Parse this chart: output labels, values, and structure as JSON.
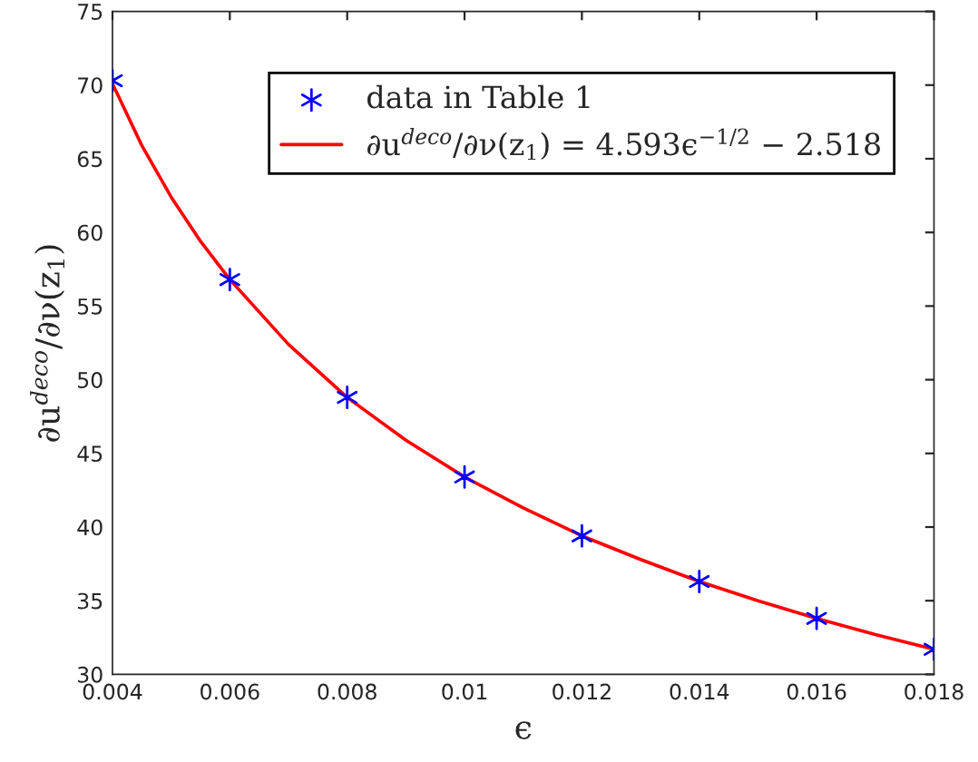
{
  "chart_data": {
    "type": "scatter",
    "xlabel": "ϵ",
    "ylabel": "∂u$^{deco}$/∂ν(z$_{1}$)",
    "xlim": [
      0.004,
      0.018
    ],
    "xticks": [
      0.004,
      0.006,
      0.008,
      0.01,
      0.012,
      0.014,
      0.016,
      0.018
    ],
    "ylim": [
      30,
      75
    ],
    "yticks": [
      30,
      35,
      40,
      45,
      50,
      55,
      60,
      65,
      70,
      75
    ],
    "grid": false,
    "legend": "top right",
    "series": [
      {
        "name": "data in Table 1",
        "marker": "cross",
        "color": "#0000ff",
        "x": [
          0.004,
          0.006,
          0.008,
          0.01,
          0.012,
          0.014,
          0.016,
          0.018
        ],
        "values": [
          70.3,
          56.8,
          48.8,
          43.4,
          39.4,
          36.3,
          33.8,
          31.7
        ]
      },
      {
        "name": "∂u$^{deco}$/∂ν(z$_{1}$) = 4.593ϵ$^{−1/2}$ − 2.518",
        "type": "line",
        "marker": "none",
        "line_style": "solid",
        "color": "#ff0000",
        "x": [
          0.004,
          0.0045,
          0.005,
          0.0055,
          0.006,
          0.007,
          0.008,
          0.009,
          0.01,
          0.011,
          0.012,
          0.013,
          0.014,
          0.015,
          0.016,
          0.017,
          0.018
        ],
        "values": [
          70.1,
          65.9,
          62.4,
          59.4,
          56.8,
          52.4,
          48.8,
          45.9,
          43.4,
          41.3,
          39.4,
          37.8,
          36.3,
          35.0,
          33.8,
          32.7,
          31.7
        ]
      }
    ]
  }
}
